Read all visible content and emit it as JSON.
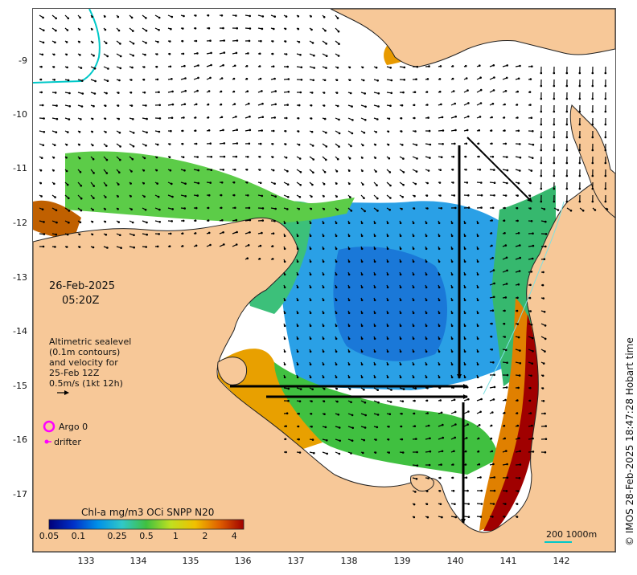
{
  "map": {
    "date": "26-Feb-2025",
    "time": "05:20Z",
    "sealevel_note": [
      "Altimetric sealevel",
      "(0.1m contours)",
      "and velocity for",
      "25-Feb 12Z",
      "0.5m/s (1kt 12h)"
    ],
    "argo_label": "Argo 0",
    "drifter_label": "drifter",
    "scale_label": "200  1000m",
    "attribution": "© IMOS 28-Feb-2025 18:47:28 Hobart time",
    "colors": {
      "land": "#f7c898",
      "coast": "#222222",
      "argo": "#ff00ff",
      "drifter": "#ff00ff",
      "boundary": "#00c8c8",
      "arrow": "#000000"
    }
  },
  "axes": {
    "x_ticks": [
      "133",
      "134",
      "135",
      "136",
      "137",
      "138",
      "139",
      "140",
      "141",
      "142"
    ],
    "y_ticks": [
      "-9",
      "-10",
      "-11",
      "-12",
      "-13",
      "-14",
      "-15",
      "-16",
      "-17"
    ]
  },
  "colorbar": {
    "title": "Chl-a mg/m3 OCi SNPP N20",
    "tick_labels": [
      "0.05",
      "0.1",
      "0.25",
      "0.5",
      "1",
      "2",
      "4"
    ],
    "tick_values": [
      0.05,
      0.1,
      0.25,
      0.5,
      1,
      2,
      4
    ],
    "range": [
      0.05,
      5
    ],
    "stops": [
      "#00007a",
      "#0030c8",
      "#0090e8",
      "#30c8c8",
      "#40c040",
      "#c0e020",
      "#f0c000",
      "#e06000",
      "#a00000"
    ]
  }
}
